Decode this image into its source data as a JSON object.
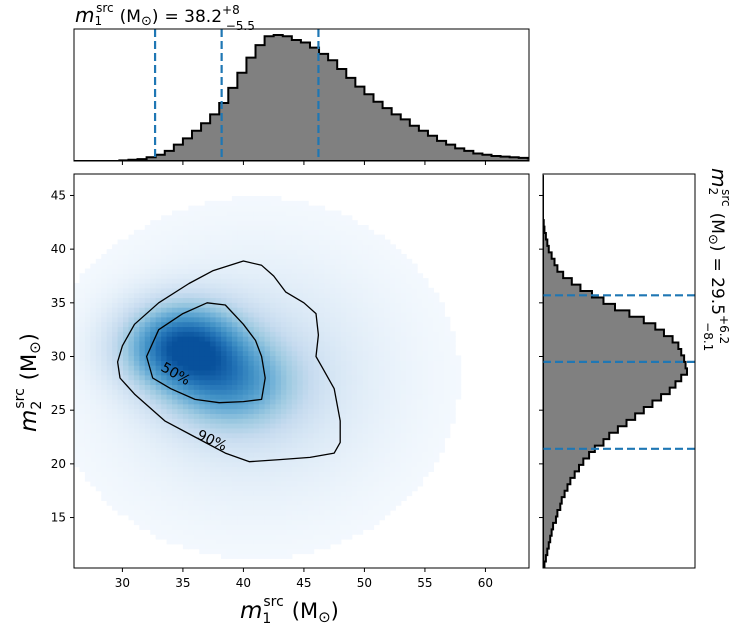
{
  "chart_data": [
    {
      "type": "histogram",
      "panel": "top",
      "title": {
        "var": "m",
        "sub": "1",
        "sup": "src",
        "unit": "(M",
        "sun": "⊙",
        "close": ")",
        "eq": "= 38.2",
        "plus": "+8",
        "minus": "−5.5"
      },
      "x_range": [
        26,
        63.6
      ],
      "dashed_lines": [
        32.7,
        38.2,
        46.2
      ],
      "line_color": "#1f77b4",
      "fill_color": "#808080",
      "bins": {
        "start": 26,
        "width": 0.75,
        "counts": [
          0,
          0,
          0,
          0,
          0,
          0.5,
          1,
          1.5,
          3,
          5,
          8,
          13,
          18,
          24,
          30,
          37,
          46,
          58,
          70,
          82,
          92,
          99,
          100,
          99,
          96,
          94,
          90,
          85,
          80,
          73,
          66,
          59,
          53,
          47,
          42,
          37,
          33,
          28,
          24,
          20,
          16,
          13,
          10,
          8,
          6,
          5,
          4,
          3.5,
          3,
          2.5,
          2,
          1.5,
          1,
          1,
          0.8,
          0.6,
          0.5,
          0.4,
          0.3,
          0.2,
          0.1,
          0.1,
          0,
          0,
          0,
          0,
          0,
          0,
          0,
          0
        ]
      }
    },
    {
      "type": "heatmap",
      "panel": "joint",
      "xlabel": {
        "var": "m",
        "sub": "1",
        "sup": "src",
        "unit": "(M",
        "sun": "⊙",
        "close": ")"
      },
      "ylabel": {
        "var": "m",
        "sub": "2",
        "sup": "src",
        "unit": "(M",
        "sun": "⊙",
        "close": ")"
      },
      "x_range": [
        26,
        63.6
      ],
      "y_range": [
        10.3,
        47
      ],
      "x_ticks": [
        "30",
        "35",
        "40",
        "45",
        "50",
        "55",
        "60"
      ],
      "y_ticks": [
        "15",
        "20",
        "25",
        "30",
        "35",
        "40",
        "45"
      ],
      "density_peak": {
        "x": 35,
        "y": 31
      },
      "colormap": "Blues",
      "contours": [
        {
          "label": "50%",
          "points": [
            [
              32,
              30
            ],
            [
              33,
              32.5
            ],
            [
              35,
              34
            ],
            [
              37,
              35
            ],
            [
              38.5,
              34.8
            ],
            [
              40,
              33
            ],
            [
              41,
              31.5
            ],
            [
              41.5,
              30
            ],
            [
              41.8,
              28
            ],
            [
              41.5,
              26
            ],
            [
              40,
              25.8
            ],
            [
              38,
              25.7
            ],
            [
              36,
              26
            ],
            [
              34,
              27
            ],
            [
              32.5,
              28
            ],
            [
              32,
              30
            ]
          ]
        },
        {
          "label": "90%",
          "points": [
            [
              30,
              31
            ],
            [
              31,
              33
            ],
            [
              33,
              35
            ],
            [
              35.5,
              36.8
            ],
            [
              37.5,
              38
            ],
            [
              40,
              38.9
            ],
            [
              41.5,
              38.5
            ],
            [
              42.5,
              37.5
            ],
            [
              43.5,
              36
            ],
            [
              45,
              35
            ],
            [
              46,
              34
            ],
            [
              46.2,
              32
            ],
            [
              46,
              30
            ],
            [
              46.5,
              29
            ],
            [
              47.5,
              27
            ],
            [
              48,
              24
            ],
            [
              48,
              22
            ],
            [
              47.5,
              21
            ],
            [
              45.5,
              20.6
            ],
            [
              43,
              20.4
            ],
            [
              40.5,
              20.2
            ],
            [
              38.5,
              21
            ],
            [
              36,
              22.5
            ],
            [
              33.5,
              24
            ],
            [
              31,
              26.5
            ],
            [
              29.8,
              28
            ],
            [
              29.6,
              29.5
            ],
            [
              30,
              31
            ]
          ]
        }
      ]
    },
    {
      "type": "histogram",
      "panel": "right",
      "orientation": "horizontal",
      "title": {
        "var": "m",
        "sub": "2",
        "sup": "src",
        "unit": "(M",
        "sun": "⊙",
        "close": ")",
        "eq": "= 29.5",
        "plus": "+6.2",
        "minus": "−8.1"
      },
      "y_range": [
        10.3,
        47
      ],
      "dashed_lines": [
        21.4,
        29.5,
        35.7
      ],
      "bins": {
        "start": 10.3,
        "width": 0.6,
        "counts": [
          1,
          2,
          3,
          4,
          5,
          6,
          7,
          9,
          10,
          12,
          13,
          15,
          17,
          19,
          22,
          25,
          28,
          32,
          36,
          42,
          46,
          52,
          58,
          64,
          70,
          76,
          82,
          88,
          92,
          96,
          100,
          99,
          98,
          96,
          94,
          90,
          84,
          78,
          70,
          60,
          50,
          42,
          34,
          26,
          20,
          14,
          10,
          8,
          6,
          4,
          3,
          2,
          1,
          0.5,
          0,
          0,
          0,
          0,
          0,
          0,
          0
        ]
      }
    }
  ]
}
